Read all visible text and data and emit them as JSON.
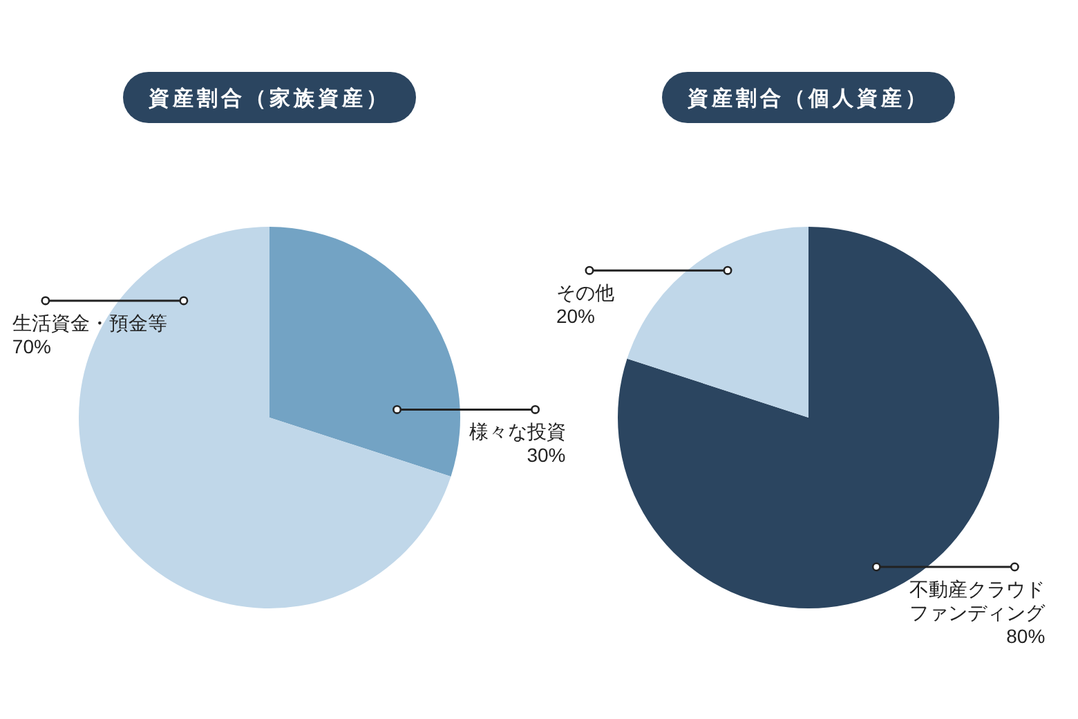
{
  "chart_data": [
    {
      "type": "pie",
      "title": "資産割合（家族資産）",
      "categories": [
        "様々な投資",
        "生活資金・預金等"
      ],
      "values": [
        30,
        70
      ],
      "colors": [
        "#73a3c4",
        "#c0d7e9"
      ],
      "value_labels": [
        "30%",
        "70%"
      ]
    },
    {
      "type": "pie",
      "title": "資産割合（個人資産）",
      "categories": [
        "不動産クラウドファンディング",
        "その他"
      ],
      "values": [
        80,
        20
      ],
      "colors": [
        "#2b4560",
        "#c0d7e9"
      ],
      "value_labels": [
        "80%",
        "20%"
      ]
    }
  ]
}
